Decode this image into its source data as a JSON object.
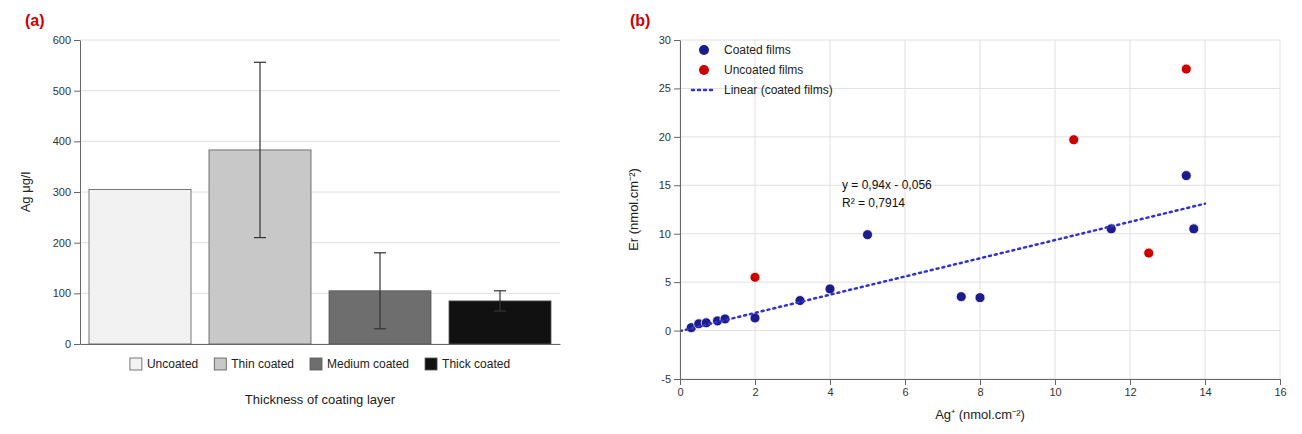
{
  "chart_data": [
    {
      "type": "bar",
      "title": "(a)",
      "categories": [
        "Uncoated",
        "Thin coated",
        "Medium coated",
        "Thick coated"
      ],
      "values": [
        305,
        383,
        105,
        85
      ],
      "errors": [
        0,
        173,
        75,
        20
      ],
      "colors": [
        "#f2f2f2",
        "#c8c8c8",
        "#6e6e6e",
        "#111111"
      ],
      "y_label": "Ag μg/l",
      "x_label": "Thickness of coating layer",
      "ylim": [
        0,
        600
      ],
      "yticks": [
        0,
        100,
        200,
        300,
        400,
        500,
        600
      ],
      "grid": true,
      "legend": "bottom",
      "tick_labels": "y"
    },
    {
      "type": "scatter",
      "title": "(b)",
      "series": [
        {
          "name": "Coated films",
          "type": "scatter",
          "color": "#1c1c8c",
          "marker": "circle",
          "x": [
            0.3,
            0.5,
            0.7,
            1.0,
            1.2,
            2.0,
            3.2,
            4.0,
            5.0,
            7.5,
            8.0,
            11.5,
            13.5,
            13.7
          ],
          "values": [
            0.3,
            0.7,
            0.8,
            1.0,
            1.2,
            1.3,
            3.1,
            4.3,
            9.9,
            3.5,
            3.4,
            10.5,
            16.0,
            10.5
          ]
        },
        {
          "name": "Uncoated films",
          "type": "scatter",
          "color": "#cc0000",
          "marker": "circle",
          "x": [
            2.0,
            10.5,
            12.5,
            13.5
          ],
          "values": [
            5.5,
            19.7,
            8.0,
            27.0
          ]
        },
        {
          "name": "Linear (coated films)",
          "type": "line",
          "color": "#3333cc",
          "line_style": "dotted",
          "x": [
            0,
            14
          ],
          "values": [
            -0.056,
            13.104
          ]
        }
      ],
      "annotations": [
        "y = 0,94x - 0,056",
        "R² = 0,7914"
      ],
      "x_label": "Ag⁺ (nmol.cm⁻²)",
      "y_label": "Er (nmol.cm⁻²)",
      "xlim": [
        0,
        16
      ],
      "ylim": [
        -5,
        30
      ],
      "xticks": [
        0,
        2,
        4,
        6,
        8,
        10,
        12,
        14,
        16
      ],
      "yticks": [
        -5,
        0,
        5,
        10,
        15,
        20,
        25,
        30
      ],
      "grid": true,
      "legend": "top-left"
    }
  ]
}
